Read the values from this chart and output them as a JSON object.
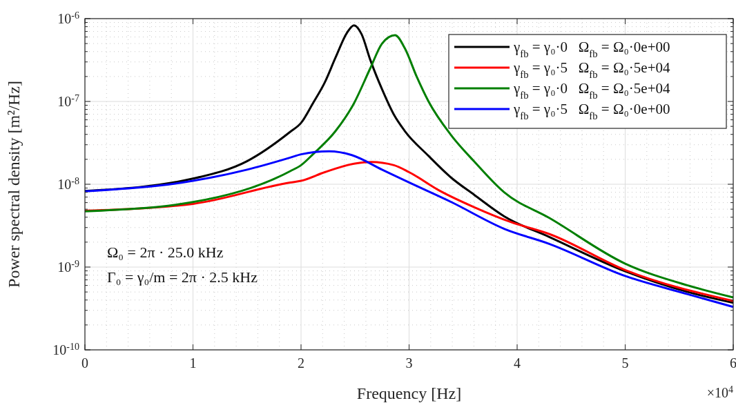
{
  "chart_data": {
    "type": "line",
    "xlabel": "Frequency [Hz]",
    "ylabel": "Power spectral density [m²/Hz]",
    "annotations": [
      "Ω₀ = 2π · 25.0 kHz",
      "Γ₀ = γ₀/m = 2π · 2.5 kHz",
      "×10$^{4}$"
    ],
    "log": "y",
    "grid": true,
    "legend": "top right",
    "xlim": [
      0,
      6
    ],
    "xticks": [
      0,
      1,
      2,
      3,
      4,
      5,
      6
    ],
    "ylim": [
      1e-10,
      1e-06
    ],
    "yticks": [
      {
        "value": 1e-10,
        "label": "10$^{-10}$"
      },
      {
        "value": 1e-09,
        "label": "10$^{-9}$"
      },
      {
        "value": 1e-08,
        "label": "10$^{-8}$"
      },
      {
        "value": 1e-07,
        "label": "10$^{-7}$"
      },
      {
        "value": 1e-06,
        "label": "10$^{-6}$"
      }
    ],
    "series": [
      {
        "name": "γ$_{fb}$ = γ₀·0   Ω$_{fb}$ = Ω₀·0e+00",
        "color": "#000000",
        "x": [
          0,
          1,
          1.5,
          1.9,
          2.0,
          2.11,
          2.22,
          2.32,
          2.43,
          2.49,
          2.56,
          2.64,
          2.75,
          2.86,
          2.96,
          3.18,
          3.39,
          3.6,
          3.88,
          4.3,
          5.0,
          5.58,
          6.0
        ],
        "values": [
          8.3e-09,
          1.17e-08,
          1.9e-08,
          4.3e-08,
          5.5e-08,
          9.5e-08,
          1.7e-07,
          3.4e-07,
          6.9e-07,
          8.3e-07,
          6.5e-07,
          3.2e-07,
          1.4e-07,
          6.9e-08,
          4.4e-08,
          2.2e-08,
          1.2e-08,
          7.5e-09,
          4.1e-09,
          2.3e-09,
          8.9e-10,
          5e-10,
          3.7e-10
        ]
      },
      {
        "name": "γ$_{fb}$ = γ₀·5   Ω$_{fb}$ = Ω₀·5e+04",
        "color": "#ff0000",
        "x": [
          0,
          1,
          1.9,
          2.0,
          2.22,
          2.5,
          2.65,
          2.86,
          3.0,
          3.28,
          3.6,
          3.94,
          4.3,
          5.0,
          6.0
        ],
        "values": [
          4.8e-09,
          5.8e-09,
          1.05e-08,
          1.1e-08,
          1.4e-08,
          1.78e-08,
          1.86e-08,
          1.7e-08,
          1.4e-08,
          8.4e-09,
          5.3e-09,
          3.5e-09,
          2.5e-09,
          9.2e-10,
          3.9e-10
        ]
      },
      {
        "name": "γ$_{fb}$ = γ₀·0   Ω$_{fb}$ = Ω₀·5e+04",
        "color": "#007f00",
        "x": [
          0,
          1,
          1.9,
          2.0,
          2.11,
          2.32,
          2.49,
          2.64,
          2.75,
          2.87,
          2.96,
          3.07,
          3.18,
          3.39,
          3.6,
          3.88,
          4.3,
          5.0,
          5.58,
          6.0
        ],
        "values": [
          4.7e-09,
          6.1e-09,
          1.44e-08,
          1.7e-08,
          2.3e-08,
          4.4e-08,
          9.5e-08,
          2.5e-07,
          5e-07,
          6.3e-07,
          4.4e-07,
          2e-07,
          1e-07,
          3.9e-08,
          1.9e-08,
          8e-09,
          3.9e-09,
          1.1e-09,
          6e-10,
          4.3e-10
        ]
      },
      {
        "name": "γ$_{fb}$ = γ₀·5   Ω$_{fb}$ = Ω₀·0e+00",
        "color": "#0000ff",
        "x": [
          0,
          1,
          1.5,
          1.9,
          2.0,
          2.26,
          2.47,
          2.75,
          3.0,
          3.39,
          3.88,
          4.3,
          5.0,
          5.58,
          6.0
        ],
        "values": [
          8.2e-09,
          1.1e-08,
          1.5e-08,
          2.1e-08,
          2.3e-08,
          2.5e-08,
          2.25e-08,
          1.5e-08,
          1.05e-08,
          6.1e-09,
          2.9e-09,
          1.9e-09,
          7.8e-10,
          4.7e-10,
          3.3e-10
        ]
      }
    ]
  }
}
